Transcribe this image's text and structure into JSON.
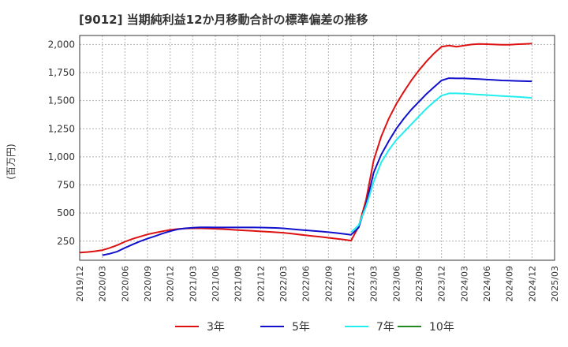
{
  "chart_data": {
    "type": "line",
    "title": "[9012]  当期純利益12か月移動合計の標準偏差の推移",
    "ylabel": "(百万円)",
    "xlabel": "",
    "ylim": [
      80,
      2080
    ],
    "yticks": [
      250,
      500,
      750,
      1000,
      1250,
      1500,
      1750,
      2000
    ],
    "ytick_labels": [
      "250",
      "500",
      "750",
      "1,000",
      "1,250",
      "1,500",
      "1,750",
      "2,000"
    ],
    "xticks": [
      "2019/12",
      "2020/03",
      "2020/06",
      "2020/09",
      "2020/12",
      "2021/03",
      "2021/06",
      "2021/09",
      "2021/12",
      "2022/03",
      "2022/06",
      "2022/09",
      "2022/12",
      "2023/03",
      "2023/06",
      "2023/09",
      "2023/12",
      "2024/03",
      "2024/06",
      "2024/09",
      "2024/12",
      "2025/03"
    ],
    "grid": true,
    "legend_position": "bottom",
    "series": [
      {
        "name": "3年",
        "color": "#dd1111",
        "x": [
          "2019/12",
          "2020/01",
          "2020/02",
          "2020/03",
          "2020/04",
          "2020/05",
          "2020/06",
          "2020/07",
          "2020/08",
          "2020/09",
          "2020/10",
          "2020/11",
          "2020/12",
          "2021/01",
          "2021/02",
          "2021/03",
          "2021/04",
          "2021/05",
          "2021/06",
          "2021/07",
          "2021/08",
          "2021/09",
          "2021/10",
          "2021/11",
          "2021/12",
          "2022/01",
          "2022/02",
          "2022/03",
          "2022/04",
          "2022/05",
          "2022/06",
          "2022/07",
          "2022/08",
          "2022/09",
          "2022/10",
          "2022/11",
          "2022/12",
          "2023/01",
          "2023/02",
          "2023/03",
          "2023/04",
          "2023/05",
          "2023/06",
          "2023/07",
          "2023/08",
          "2023/09",
          "2023/10",
          "2023/11",
          "2023/12",
          "2024/01",
          "2024/02",
          "2024/03",
          "2024/04",
          "2024/05",
          "2024/06",
          "2024/07",
          "2024/08",
          "2024/09",
          "2024/10",
          "2024/11",
          "2024/12"
        ],
        "values": [
          148,
          153,
          160,
          170,
          190,
          215,
          245,
          270,
          290,
          310,
          325,
          338,
          350,
          358,
          362,
          364,
          364,
          362,
          360,
          357,
          353,
          349,
          345,
          341,
          337,
          333,
          329,
          325,
          318,
          310,
          302,
          295,
          288,
          280,
          272,
          264,
          255,
          380,
          620,
          970,
          1180,
          1340,
          1470,
          1580,
          1680,
          1770,
          1850,
          1920,
          1980,
          1990,
          1980,
          1990,
          2000,
          2005,
          2003,
          2000,
          1998,
          1998,
          2002,
          2005,
          2008
        ]
      },
      {
        "name": "5年",
        "color": "#1111cc",
        "x": [
          "2020/03",
          "2020/04",
          "2020/05",
          "2020/06",
          "2020/07",
          "2020/08",
          "2020/09",
          "2020/10",
          "2020/11",
          "2020/12",
          "2021/01",
          "2021/02",
          "2021/03",
          "2021/04",
          "2021/05",
          "2021/06",
          "2021/07",
          "2021/08",
          "2021/09",
          "2021/10",
          "2021/11",
          "2021/12",
          "2022/01",
          "2022/02",
          "2022/03",
          "2022/04",
          "2022/05",
          "2022/06",
          "2022/07",
          "2022/08",
          "2022/09",
          "2022/10",
          "2022/11",
          "2022/12",
          "2023/01",
          "2023/02",
          "2023/03",
          "2023/04",
          "2023/05",
          "2023/06",
          "2023/07",
          "2023/08",
          "2023/09",
          "2023/10",
          "2023/11",
          "2023/12",
          "2024/01",
          "2024/02",
          "2024/03",
          "2024/04",
          "2024/05",
          "2024/06",
          "2024/07",
          "2024/08",
          "2024/09",
          "2024/10",
          "2024/11",
          "2024/12"
        ],
        "values": [
          125,
          138,
          158,
          190,
          220,
          248,
          272,
          295,
          318,
          338,
          355,
          364,
          370,
          373,
          373,
          372,
          372,
          372,
          372,
          372,
          372,
          371,
          370,
          368,
          364,
          358,
          352,
          347,
          342,
          336,
          330,
          323,
          315,
          307,
          370,
          580,
          860,
          1020,
          1140,
          1250,
          1340,
          1420,
          1490,
          1560,
          1620,
          1680,
          1700,
          1698,
          1698,
          1695,
          1692,
          1688,
          1684,
          1680,
          1678,
          1676,
          1674,
          1672
        ]
      },
      {
        "name": "7年",
        "color": "#22eeee",
        "x": [
          "2022/12",
          "2023/01",
          "2023/02",
          "2023/03",
          "2023/04",
          "2023/05",
          "2023/06",
          "2023/07",
          "2023/08",
          "2023/09",
          "2023/10",
          "2023/11",
          "2023/12",
          "2024/01",
          "2024/02",
          "2024/03",
          "2024/04",
          "2024/05",
          "2024/06",
          "2024/07",
          "2024/08",
          "2024/09",
          "2024/10",
          "2024/11",
          "2024/12"
        ],
        "values": [
          330,
          390,
          560,
          780,
          950,
          1060,
          1150,
          1220,
          1290,
          1360,
          1430,
          1490,
          1545,
          1565,
          1565,
          1562,
          1558,
          1554,
          1550,
          1546,
          1542,
          1538,
          1534,
          1530,
          1525
        ]
      },
      {
        "name": "10年",
        "color": "#228822",
        "x": [],
        "values": []
      }
    ]
  }
}
